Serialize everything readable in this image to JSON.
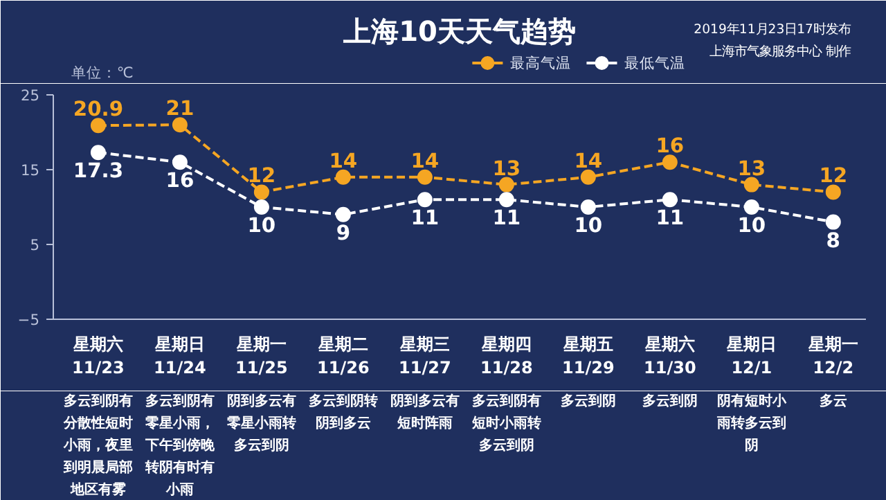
{
  "chart_data": {
    "type": "line",
    "title": "上海10天天气趋势",
    "categories": [
      "星期六\n11/23",
      "星期日\n11/24",
      "星期一\n11/25",
      "星期二\n11/26",
      "星期三\n11/27",
      "星期四\n11/28",
      "星期五\n11/29",
      "星期六\n11/30",
      "星期日\n12/1",
      "星期一\n12/2"
    ],
    "series": [
      {
        "name": "最高气温",
        "color": "#f5a623",
        "values": [
          20.9,
          21,
          12,
          14,
          14,
          13,
          14,
          16,
          13,
          12
        ]
      },
      {
        "name": "最低气温",
        "color": "#ffffff",
        "values": [
          17.3,
          16,
          10,
          9,
          11,
          11,
          10,
          11,
          10,
          8
        ]
      }
    ],
    "ylim": [
      -5,
      25
    ],
    "yticks": [
      -5,
      5,
      15,
      25
    ],
    "grid": false,
    "legend": "top",
    "marker": "circle",
    "line_style": "dashed",
    "data_labels": true,
    "annotations": [
      "单位：℃",
      "2019年11月23日17时发布",
      "上海市气象服务中心 制作",
      "多云到阴有分散性短时小雨，夜里到明晨局部地区有雾",
      "多云到阴有零星小雨，下午到傍晚转阴有时有小雨",
      "阴到多云有零星小雨转多云到阴",
      "多云到阴转阴到多云",
      "阴到多云有短时阵雨",
      "多云到阴有短时小雨转多云到阴",
      "多云到阴",
      "多云到阴",
      "阴有短时小雨转多云到阴",
      "多云"
    ]
  }
}
